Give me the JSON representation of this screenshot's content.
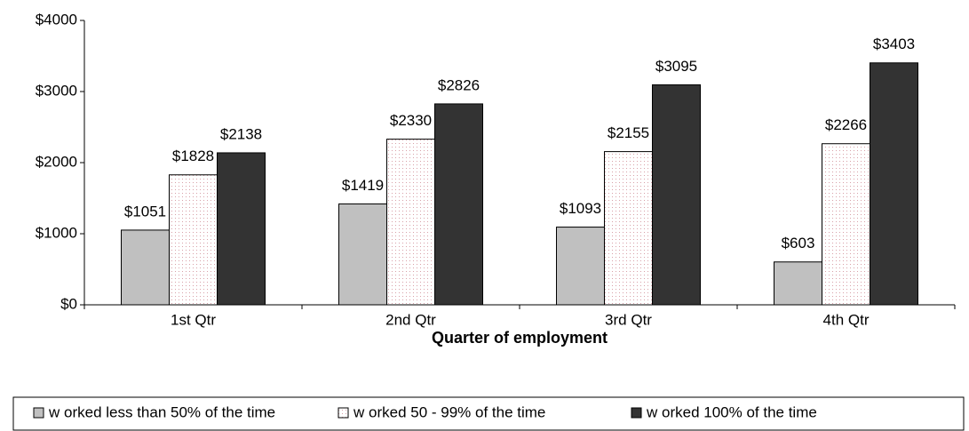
{
  "chart_data": {
    "type": "bar",
    "xlabel": "Quarter of employment",
    "categories": [
      "1st Qtr",
      "2nd Qtr",
      "3rd Qtr",
      "4th Qtr"
    ],
    "series": [
      {
        "name": "w orked less than 50% of the time",
        "color": "#c0c0c0",
        "values": [
          1051,
          1419,
          1093,
          603
        ],
        "value_labels": [
          "$1051",
          "$1419",
          "$1093",
          "$603"
        ]
      },
      {
        "name": "w orked 50 - 99% of the time",
        "color": "#ffffff",
        "values": [
          1828,
          2330,
          2155,
          2266
        ],
        "value_labels": [
          "$1828",
          "$2330",
          "$2155",
          "$2266"
        ]
      },
      {
        "name": "w orked 100% of the time",
        "color": "#333333",
        "values": [
          2138,
          2826,
          3095,
          3403
        ],
        "value_labels": [
          "$2138",
          "$2826",
          "$3095",
          "$3403"
        ]
      }
    ],
    "ylim": [
      0,
      4000
    ],
    "yticks": [
      {
        "value": 0,
        "label": "$0"
      },
      {
        "value": 1000,
        "label": "$1000"
      },
      {
        "value": 2000,
        "label": "$2000"
      },
      {
        "value": 3000,
        "label": "$3000"
      },
      {
        "value": 4000,
        "label": "$4000"
      }
    ],
    "grid": false,
    "legend": "bottom"
  }
}
